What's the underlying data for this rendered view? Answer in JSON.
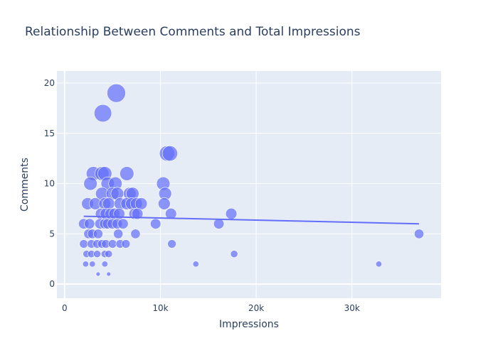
{
  "chart_data": {
    "type": "scatter",
    "title": "Relationship Between Comments and Total Impressions",
    "xlabel": "Impressions",
    "ylabel": "Comments",
    "xlim": [
      -800,
      39300
    ],
    "ylim": [
      -1.4,
      21.2
    ],
    "xticks": [
      0,
      10000,
      20000,
      30000
    ],
    "xtick_labels": [
      "0",
      "10k",
      "20k",
      "30k"
    ],
    "yticks": [
      0,
      5,
      10,
      15,
      20
    ],
    "ytick_labels": [
      "0",
      "5",
      "10",
      "15",
      "20"
    ],
    "grid": true,
    "legend": "none",
    "colors": {
      "marker": "#636efa",
      "trendline": "#636efa",
      "plot_bg": "#e5ecf6",
      "grid": "#ffffff",
      "text": "#2a3f5f"
    },
    "size_by": "Comments",
    "points": [
      {
        "x": 5400,
        "y": 19
      },
      {
        "x": 4000,
        "y": 17
      },
      {
        "x": 10700,
        "y": 13
      },
      {
        "x": 11000,
        "y": 13
      },
      {
        "x": 3000,
        "y": 11
      },
      {
        "x": 3900,
        "y": 11
      },
      {
        "x": 4200,
        "y": 11
      },
      {
        "x": 6500,
        "y": 11
      },
      {
        "x": 2700,
        "y": 10
      },
      {
        "x": 4500,
        "y": 10
      },
      {
        "x": 5300,
        "y": 10
      },
      {
        "x": 10300,
        "y": 10
      },
      {
        "x": 3900,
        "y": 9
      },
      {
        "x": 5000,
        "y": 9
      },
      {
        "x": 5500,
        "y": 9
      },
      {
        "x": 6800,
        "y": 9
      },
      {
        "x": 7100,
        "y": 9
      },
      {
        "x": 10500,
        "y": 9
      },
      {
        "x": 2400,
        "y": 8
      },
      {
        "x": 3200,
        "y": 8
      },
      {
        "x": 4200,
        "y": 8
      },
      {
        "x": 4600,
        "y": 8
      },
      {
        "x": 5800,
        "y": 8
      },
      {
        "x": 6500,
        "y": 8
      },
      {
        "x": 7000,
        "y": 8
      },
      {
        "x": 7500,
        "y": 8
      },
      {
        "x": 8000,
        "y": 8
      },
      {
        "x": 10400,
        "y": 8
      },
      {
        "x": 3800,
        "y": 7
      },
      {
        "x": 4300,
        "y": 7
      },
      {
        "x": 4800,
        "y": 7
      },
      {
        "x": 5200,
        "y": 7
      },
      {
        "x": 5700,
        "y": 7
      },
      {
        "x": 7300,
        "y": 7
      },
      {
        "x": 7600,
        "y": 7
      },
      {
        "x": 11100,
        "y": 7
      },
      {
        "x": 17400,
        "y": 7
      },
      {
        "x": 2000,
        "y": 6
      },
      {
        "x": 2600,
        "y": 6
      },
      {
        "x": 3700,
        "y": 6
      },
      {
        "x": 4200,
        "y": 6
      },
      {
        "x": 4500,
        "y": 6
      },
      {
        "x": 5000,
        "y": 6
      },
      {
        "x": 5500,
        "y": 6
      },
      {
        "x": 6100,
        "y": 6
      },
      {
        "x": 9500,
        "y": 6
      },
      {
        "x": 16100,
        "y": 6
      },
      {
        "x": 2500,
        "y": 5
      },
      {
        "x": 2900,
        "y": 5
      },
      {
        "x": 3500,
        "y": 5
      },
      {
        "x": 5600,
        "y": 5
      },
      {
        "x": 7400,
        "y": 5
      },
      {
        "x": 37000,
        "y": 5
      },
      {
        "x": 2000,
        "y": 4
      },
      {
        "x": 2800,
        "y": 4
      },
      {
        "x": 3400,
        "y": 4
      },
      {
        "x": 3900,
        "y": 4
      },
      {
        "x": 4300,
        "y": 4
      },
      {
        "x": 5000,
        "y": 4
      },
      {
        "x": 5800,
        "y": 4
      },
      {
        "x": 6400,
        "y": 4
      },
      {
        "x": 11200,
        "y": 4
      },
      {
        "x": 2300,
        "y": 3
      },
      {
        "x": 2800,
        "y": 3
      },
      {
        "x": 3400,
        "y": 3
      },
      {
        "x": 4200,
        "y": 3
      },
      {
        "x": 4600,
        "y": 3
      },
      {
        "x": 17700,
        "y": 3
      },
      {
        "x": 2200,
        "y": 2
      },
      {
        "x": 2900,
        "y": 2
      },
      {
        "x": 4200,
        "y": 2
      },
      {
        "x": 13700,
        "y": 2
      },
      {
        "x": 32800,
        "y": 2
      },
      {
        "x": 3500,
        "y": 1
      },
      {
        "x": 4600,
        "y": 1
      }
    ],
    "trendline": {
      "x": [
        2000,
        37000
      ],
      "y": [
        6.75,
        6.0
      ]
    }
  }
}
